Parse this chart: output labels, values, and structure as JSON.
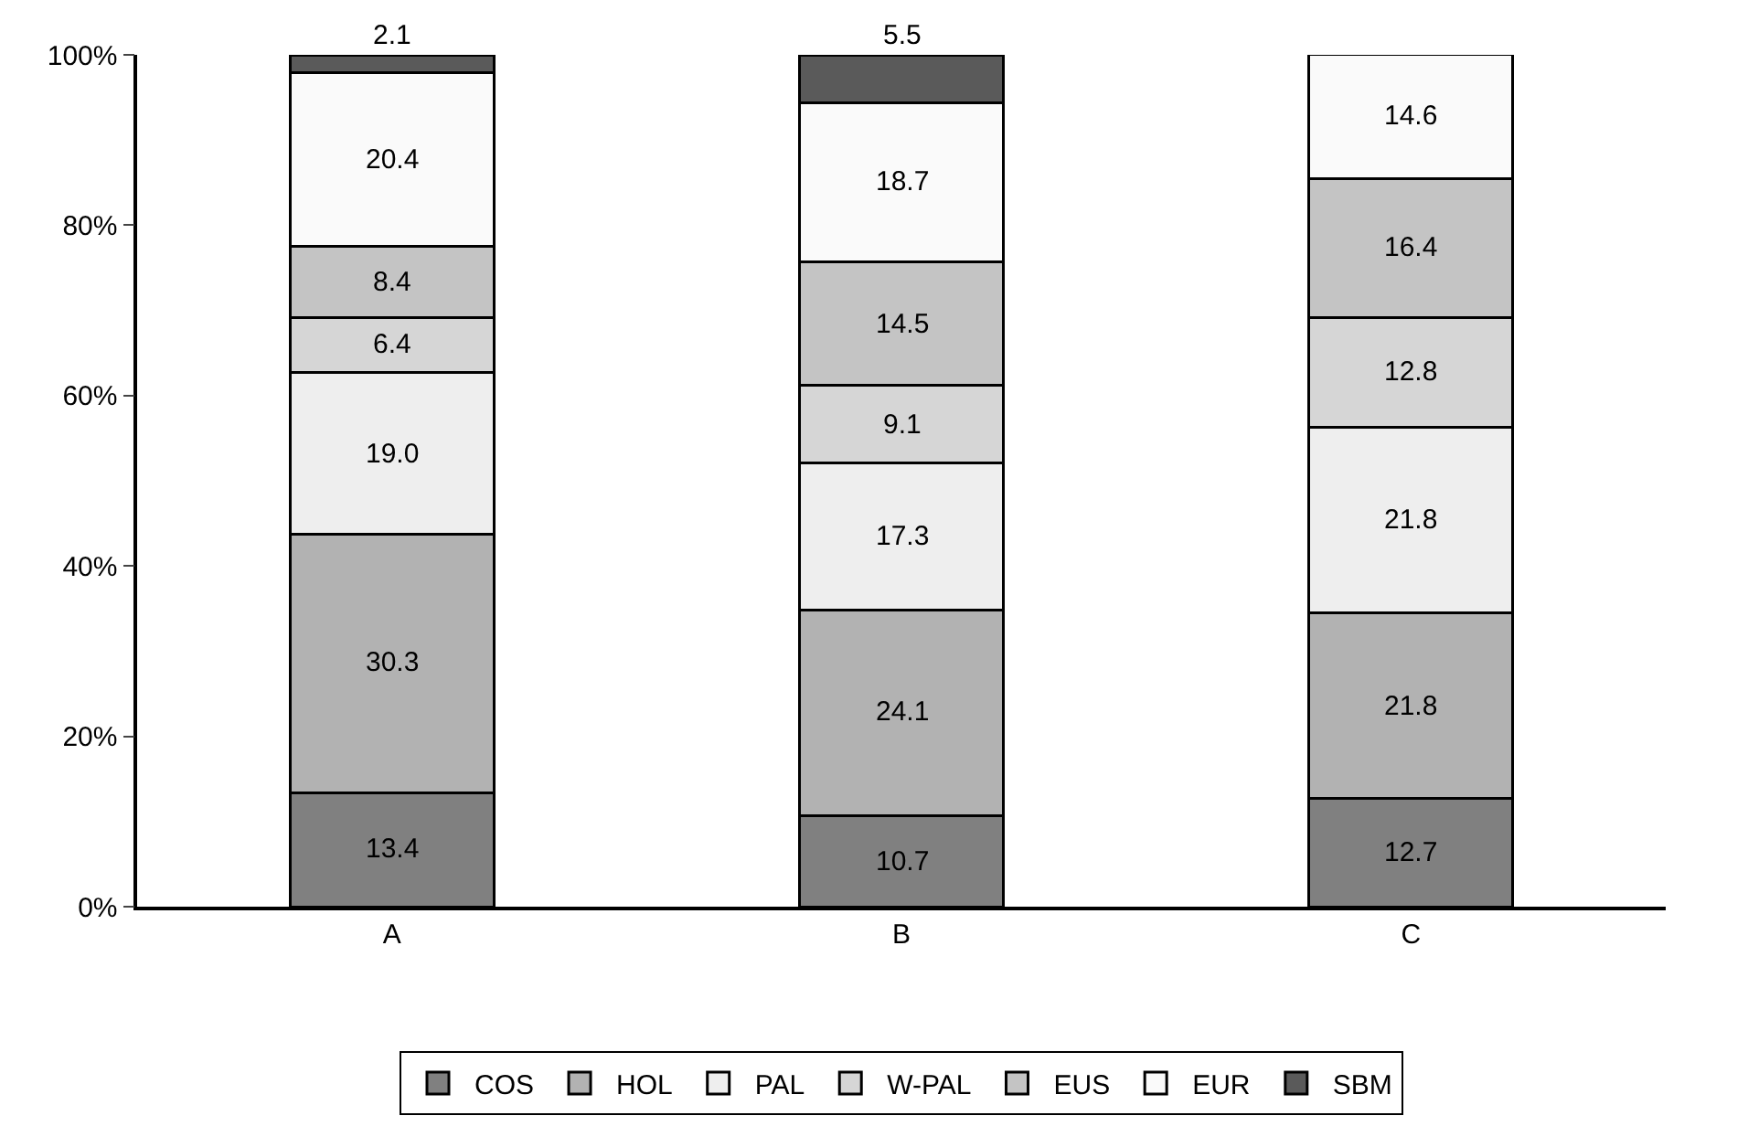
{
  "chart_data": {
    "type": "bar",
    "stacked": true,
    "categories": [
      "A",
      "B",
      "C"
    ],
    "ylim": [
      0,
      100
    ],
    "yticks": [
      {
        "value": 0,
        "label": "0%"
      },
      {
        "value": 20,
        "label": "20%"
      },
      {
        "value": 40,
        "label": "40%"
      },
      {
        "value": 60,
        "label": "60%"
      },
      {
        "value": 80,
        "label": "80%"
      },
      {
        "value": 100,
        "label": "100%"
      }
    ],
    "legend": "bottom",
    "series": [
      {
        "name": "COS",
        "color": "#808080",
        "values": [
          13.4,
          10.7,
          12.7
        ],
        "value_labels": [
          "13.4",
          "10.7",
          "12.7"
        ]
      },
      {
        "name": "HOL",
        "color": "#b2b2b2",
        "values": [
          30.3,
          24.1,
          21.8
        ],
        "value_labels": [
          "30.3",
          "24.1",
          "21.8"
        ]
      },
      {
        "name": "PAL",
        "color": "#eeeeee",
        "values": [
          19.0,
          17.3,
          21.8
        ],
        "value_labels": [
          "19.0",
          "17.3",
          "21.8"
        ]
      },
      {
        "name": "W-PAL",
        "color": "#d6d6d6",
        "values": [
          6.4,
          9.1,
          12.8
        ],
        "value_labels": [
          "6.4",
          "9.1",
          "12.8"
        ]
      },
      {
        "name": "EUS",
        "color": "#c4c4c4",
        "values": [
          8.4,
          14.5,
          16.4
        ],
        "value_labels": [
          "8.4",
          "14.5",
          "16.4"
        ]
      },
      {
        "name": "EUR",
        "color": "#fafafa",
        "values": [
          20.4,
          18.7,
          14.6
        ],
        "value_labels": [
          "20.4",
          "18.7",
          "14.6"
        ]
      },
      {
        "name": "SBM",
        "color": "#5a5a5a",
        "values": [
          2.1,
          5.5,
          null
        ],
        "value_labels": [
          "2.1",
          "5.5",
          null
        ]
      }
    ]
  }
}
